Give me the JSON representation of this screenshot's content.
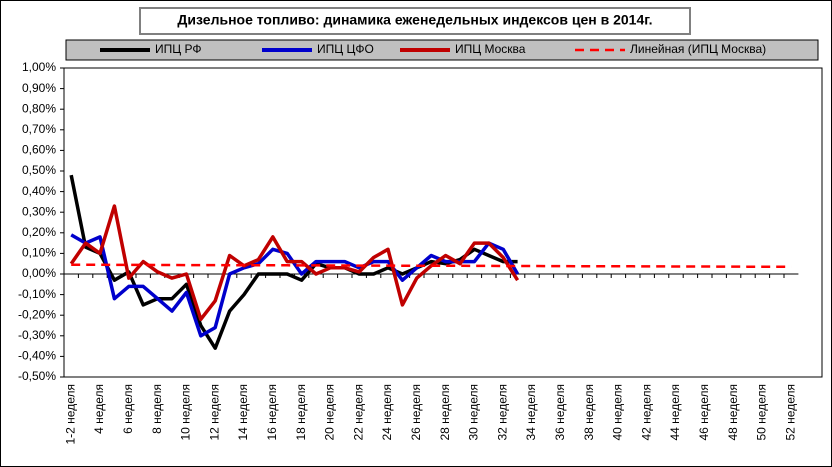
{
  "chart_data": {
    "type": "line",
    "title": "Дизельное топливо: динамика еженедельных индексов цен в 2014г.",
    "categories": [
      "1-2 неделя",
      null,
      "4 неделя",
      null,
      "6 неделя",
      null,
      "8 неделя",
      null,
      "10 неделя",
      null,
      "12 неделя",
      null,
      "14 неделя",
      null,
      "16 неделя",
      null,
      "18 неделя",
      null,
      "20 неделя",
      null,
      "22 неделя",
      null,
      "24 неделя",
      null,
      "26 неделя",
      null,
      "28 неделя",
      null,
      "30 неделя",
      null,
      "32 неделя",
      null,
      "34 неделя",
      null,
      "36 неделя",
      null,
      "38 неделя",
      null,
      "40 неделя",
      null,
      "42 неделя",
      null,
      "44 неделя",
      null,
      "46 неделя",
      null,
      "48 неделя",
      null,
      "50 неделя",
      null,
      "52 неделя"
    ],
    "series": [
      {
        "name": "ИПЦ РФ",
        "color": "#000000",
        "line_style": "solid",
        "values": [
          0.48,
          0.13,
          0.1,
          -0.03,
          0.01,
          -0.15,
          -0.12,
          -0.12,
          -0.05,
          -0.25,
          -0.36,
          -0.18,
          -0.1,
          0.0,
          0.0,
          0.0,
          -0.03,
          0.05,
          0.03,
          0.03,
          0.0,
          0.0,
          0.03,
          0.0,
          0.03,
          0.06,
          0.05,
          0.07,
          0.12,
          0.09,
          0.06,
          0.06,
          null,
          null,
          null,
          null,
          null,
          null,
          null,
          null,
          null,
          null,
          null,
          null,
          null,
          null,
          null,
          null,
          null,
          null,
          null
        ]
      },
      {
        "name": "ИПЦ ЦФО",
        "color": "#0000cc",
        "line_style": "solid",
        "values": [
          0.19,
          0.15,
          0.18,
          -0.12,
          -0.06,
          -0.06,
          -0.12,
          -0.18,
          -0.09,
          -0.3,
          -0.26,
          0.0,
          0.03,
          0.05,
          0.12,
          0.1,
          0.0,
          0.06,
          0.06,
          0.06,
          0.03,
          0.06,
          0.06,
          -0.03,
          0.03,
          0.09,
          0.06,
          0.06,
          0.06,
          0.15,
          0.12,
          0.0,
          null,
          null,
          null,
          null,
          null,
          null,
          null,
          null,
          null,
          null,
          null,
          null,
          null,
          null,
          null,
          null,
          null,
          null,
          null
        ]
      },
      {
        "name": "ИПЦ Москва",
        "color": "#c00000",
        "line_style": "solid",
        "values": [
          0.05,
          0.15,
          0.1,
          0.33,
          -0.02,
          0.06,
          0.01,
          -0.02,
          0.0,
          -0.22,
          -0.13,
          0.09,
          0.04,
          0.07,
          0.18,
          0.06,
          0.06,
          0.0,
          0.03,
          0.03,
          0.01,
          0.08,
          0.12,
          -0.15,
          -0.02,
          0.04,
          0.09,
          0.05,
          0.15,
          0.15,
          0.08,
          -0.03,
          null,
          null,
          null,
          null,
          null,
          null,
          null,
          null,
          null,
          null,
          null,
          null,
          null,
          null,
          null,
          null,
          null,
          null,
          null
        ]
      },
      {
        "name": "Линейная (ИПЦ Москва)",
        "color": "#ff0000",
        "line_style": "dashed",
        "values": [
          0.045,
          0.0448,
          0.0446,
          0.0444,
          0.0442,
          0.044,
          0.0438,
          0.0436,
          0.0434,
          0.0432,
          0.043,
          0.0428,
          0.0426,
          0.0424,
          0.0422,
          0.042,
          0.0418,
          0.0416,
          0.0414,
          0.0412,
          0.041,
          0.0408,
          0.0406,
          0.0404,
          0.0402,
          0.04,
          0.0398,
          0.0396,
          0.0394,
          0.0392,
          0.039,
          0.0388,
          0.0386,
          0.0384,
          0.0382,
          0.038,
          0.0378,
          0.0376,
          0.0374,
          0.0372,
          0.037,
          0.0368,
          0.0366,
          0.0364,
          0.0362,
          0.036,
          0.0358,
          0.0356,
          0.0354,
          0.0352,
          0.035
        ]
      }
    ],
    "ylim": [
      -0.5,
      1.0
    ],
    "yticks": [
      {
        "value": -0.5,
        "label": "-0,50%"
      },
      {
        "value": -0.4,
        "label": "-0,40%"
      },
      {
        "value": -0.3,
        "label": "-0,30%"
      },
      {
        "value": -0.2,
        "label": "-0,20%"
      },
      {
        "value": -0.1,
        "label": "-0,10%"
      },
      {
        "value": 0,
        "label": "0,00%"
      },
      {
        "value": 0.1,
        "label": "0,10%"
      },
      {
        "value": 0.2,
        "label": "0,20%"
      },
      {
        "value": 0.3,
        "label": "0,30%"
      },
      {
        "value": 0.4,
        "label": "0,40%"
      },
      {
        "value": 0.5,
        "label": "0,50%"
      },
      {
        "value": 0.6,
        "label": "0,60%"
      },
      {
        "value": 0.7,
        "label": "0,70%"
      },
      {
        "value": 0.8,
        "label": "0,80%"
      },
      {
        "value": 0.9,
        "label": "0,90%"
      },
      {
        "value": 1.0,
        "label": "1,00%"
      }
    ],
    "grid": false,
    "legend": "top"
  }
}
